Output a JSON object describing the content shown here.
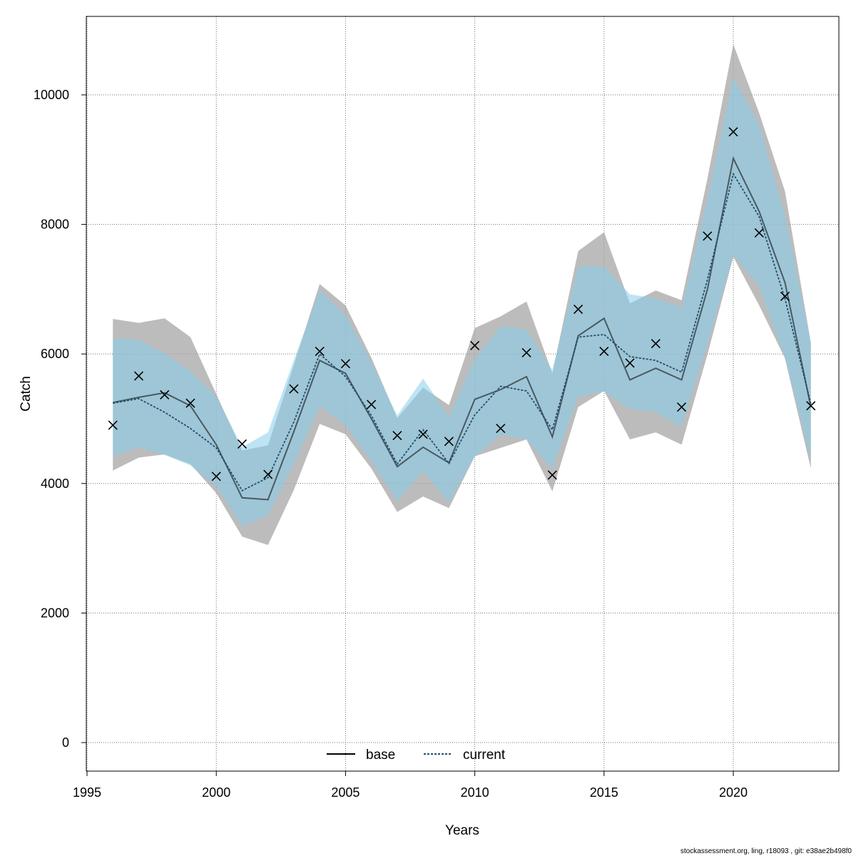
{
  "chart_data": {
    "type": "line",
    "title": "",
    "xlabel": "Years",
    "ylabel": "Catch",
    "xlim": [
      1995,
      2023
    ],
    "ylim": [
      0,
      11000
    ],
    "xticks": [
      1995,
      2000,
      2005,
      2010,
      2015,
      2020
    ],
    "yticks": [
      0,
      2000,
      4000,
      6000,
      8000,
      10000
    ],
    "grid": true,
    "legend_position": "bottom-center",
    "x": [
      1996,
      1997,
      1998,
      1999,
      2000,
      2001,
      2002,
      2003,
      2004,
      2005,
      2006,
      2007,
      2008,
      2009,
      2010,
      2011,
      2012,
      2013,
      2014,
      2015,
      2016,
      2017,
      2018,
      2019,
      2020,
      2021,
      2022,
      2023
    ],
    "observed": {
      "marker": "x",
      "values": [
        4900,
        5660,
        5370,
        5240,
        4110,
        4610,
        4140,
        5460,
        6040,
        5850,
        5220,
        4740,
        4760,
        4650,
        6130,
        4850,
        6020,
        4130,
        6690,
        6040,
        5860,
        6160,
        5180,
        7820,
        9430,
        7870,
        6890,
        5200
      ]
    },
    "series": [
      {
        "name": "base",
        "line_style": "solid",
        "color": "#000000",
        "band_color": "#a6a6a6",
        "values": [
          5250,
          5330,
          5400,
          5200,
          4600,
          3780,
          3750,
          4800,
          5900,
          5700,
          5000,
          4260,
          4560,
          4320,
          5300,
          5450,
          5650,
          4720,
          6280,
          6550,
          5600,
          5780,
          5600,
          7000,
          9020,
          8200,
          7100,
          5180
        ],
        "lower": [
          4200,
          4400,
          4450,
          4300,
          3850,
          3180,
          3050,
          3900,
          4920,
          4760,
          4230,
          3560,
          3800,
          3620,
          4420,
          4550,
          4680,
          3880,
          5180,
          5430,
          4680,
          4790,
          4600,
          5990,
          7500,
          6750,
          5930,
          4230
        ],
        "upper": [
          6540,
          6480,
          6550,
          6260,
          5380,
          4510,
          4590,
          5830,
          7080,
          6750,
          5940,
          5010,
          5480,
          5210,
          6400,
          6580,
          6810,
          5700,
          7590,
          7880,
          6780,
          6980,
          6830,
          8710,
          10780,
          9720,
          8510,
          6170
        ]
      },
      {
        "name": "current",
        "line_style": "dashed",
        "color": "#1f4e6b",
        "band_color": "#87ceeb",
        "values": [
          5240,
          5310,
          5100,
          4850,
          4550,
          3890,
          4090,
          4950,
          6000,
          5650,
          5050,
          4300,
          4830,
          4310,
          5060,
          5500,
          5430,
          4830,
          6260,
          6300,
          5960,
          5900,
          5720,
          7150,
          8780,
          8120,
          6850,
          5230
        ],
        "lower": [
          4420,
          4560,
          4440,
          4280,
          3960,
          3340,
          3510,
          4300,
          5190,
          4900,
          4340,
          3730,
          4190,
          3710,
          4420,
          4750,
          4680,
          4220,
          5340,
          5420,
          5150,
          5100,
          4870,
          6150,
          7520,
          7050,
          5940,
          4380
        ],
        "upper": [
          6240,
          6220,
          6010,
          5730,
          5350,
          4560,
          4790,
          5900,
          6990,
          6590,
          5870,
          5050,
          5620,
          5030,
          5920,
          6430,
          6380,
          5750,
          7350,
          7350,
          6920,
          6860,
          6720,
          8400,
          10270,
          9540,
          8140,
          6170
        ]
      }
    ],
    "credit": "stockassessment.org, ling, r18093 , git: e38ae2b498f0"
  }
}
